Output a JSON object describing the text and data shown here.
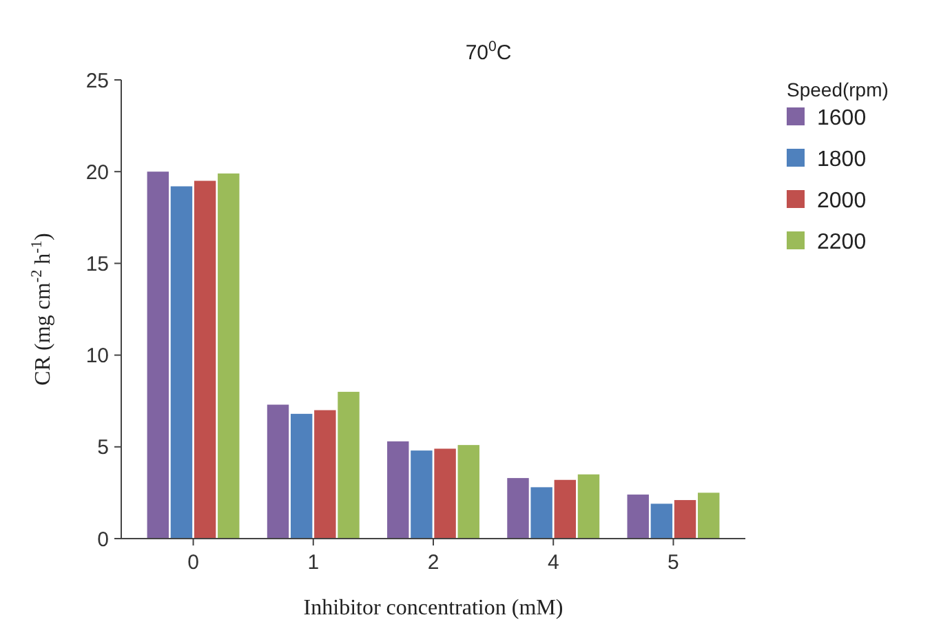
{
  "chart_data": {
    "type": "bar",
    "ylabel": "CR (mg cm$^{-2}$ h$^{-1}$)",
    "xlabel": "Inhibitor concentration  (mM)",
    "legend_title": "Speed(rpm)",
    "annotations": [
      "70$^{0}$C"
    ],
    "categories": [
      "0",
      "1",
      "2",
      "4",
      "5"
    ],
    "series": [
      {
        "name": "1600",
        "color": "#8064a2",
        "values": [
          20.0,
          7.3,
          5.3,
          3.3,
          2.4
        ]
      },
      {
        "name": "1800",
        "color": "#4f81bd",
        "values": [
          19.2,
          6.8,
          4.8,
          2.8,
          1.9
        ]
      },
      {
        "name": "2000",
        "color": "#c0504d",
        "values": [
          19.5,
          7.0,
          4.9,
          3.2,
          2.1
        ]
      },
      {
        "name": "2200",
        "color": "#9bbb59",
        "values": [
          19.9,
          8.0,
          5.1,
          3.5,
          2.5
        ]
      }
    ],
    "ylim": [
      0,
      25
    ],
    "yticks": [
      0,
      5,
      10,
      15,
      20,
      25
    ],
    "legend": "right"
  }
}
